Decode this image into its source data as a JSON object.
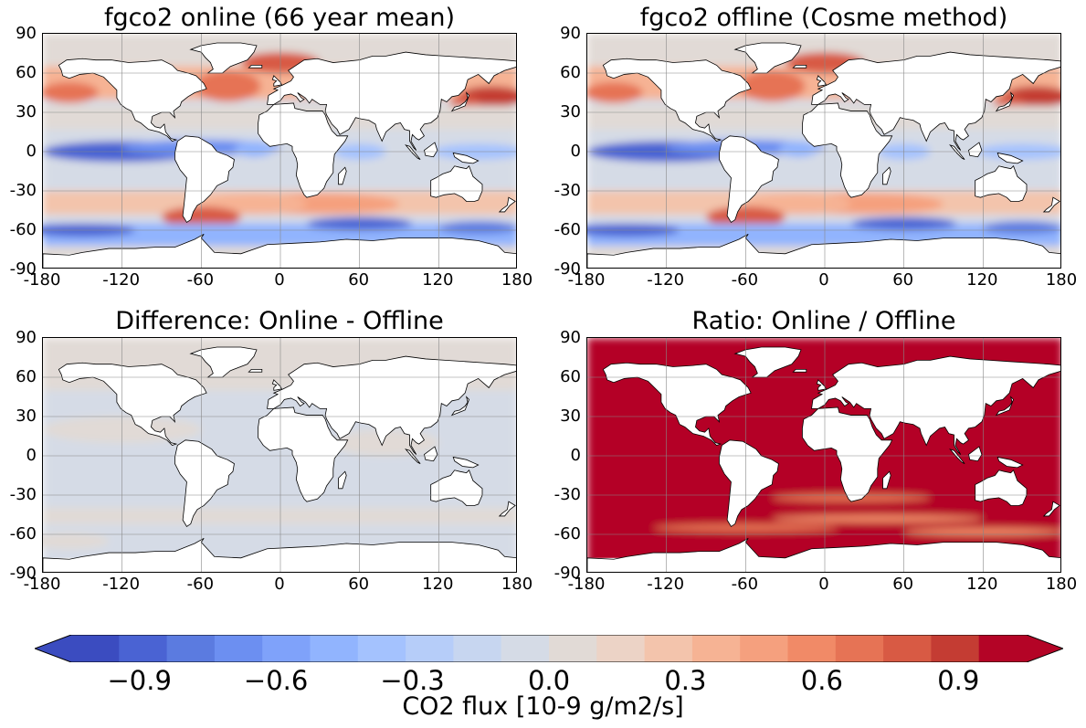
{
  "panels": [
    {
      "title": "fgco2 online (66 year mean)"
    },
    {
      "title": "fgco2 offline (Cosme method)"
    },
    {
      "title": "Difference: Online - Offline"
    },
    {
      "title": "Ratio: Online / Offline"
    }
  ],
  "axes": {
    "x_ticks": [
      "-180",
      "-120",
      "-60",
      "0",
      "60",
      "120",
      "180"
    ],
    "y_ticks": [
      "90",
      "60",
      "30",
      "0",
      "-30",
      "-60",
      "-90"
    ],
    "xlim": [
      -180,
      180
    ],
    "ylim": [
      -90,
      90
    ],
    "grid": true
  },
  "colorbar": {
    "label": "CO2 flux [10-9 g/m2/s]",
    "ticks": [
      "−0.9",
      "−0.6",
      "−0.3",
      "0.0",
      "0.3",
      "0.6",
      "0.9"
    ],
    "range": [
      -1.05,
      1.05
    ],
    "extend": "both",
    "colormap": "coolwarm",
    "colors": [
      "#3b4cc0",
      "#4a63d3",
      "#5b7be0",
      "#6c8ff1",
      "#7fa2fa",
      "#91b4fe",
      "#a4c2fe",
      "#b6cdf9",
      "#c7d6f0",
      "#d5dbe6",
      "#e1dad6",
      "#ecd3c6",
      "#f3c4ac",
      "#f6b394",
      "#f5a07e",
      "#f18a67",
      "#e67355",
      "#d85a44",
      "#c43c33",
      "#b40426"
    ]
  },
  "land_color": "#ffffff",
  "ocean_base_colors": {
    "online": "#d5dbe6",
    "difference": "#d5dbe6",
    "difference_alt": "#e1dad6",
    "ratio": "#b40426"
  }
}
